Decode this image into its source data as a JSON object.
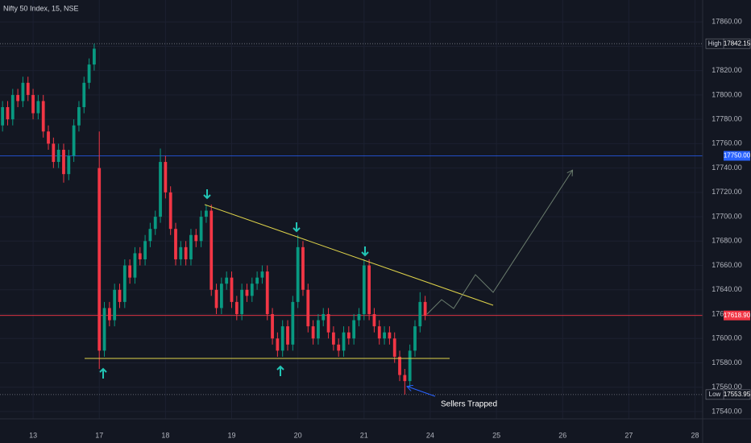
{
  "chart_data": {
    "type": "candlestick",
    "title": "Nifty 50 Index, 15, NSE",
    "xlim": [
      -0.5,
      137.5
    ],
    "xticks": [
      {
        "value": 6,
        "label": "13"
      },
      {
        "value": 19,
        "label": "17"
      },
      {
        "value": 32,
        "label": "18"
      },
      {
        "value": 45,
        "label": "19"
      },
      {
        "value": 58,
        "label": "20"
      },
      {
        "value": 71,
        "label": "21"
      },
      {
        "value": 84,
        "label": "24"
      },
      {
        "value": 97,
        "label": "25"
      },
      {
        "value": 110,
        "label": "26"
      },
      {
        "value": 123,
        "label": "27"
      },
      {
        "value": 136,
        "label": "28"
      }
    ],
    "ylim": [
      17534,
      17878
    ],
    "yticks": [
      {
        "value": 17540,
        "label": "17540.00"
      },
      {
        "value": 17560,
        "label": "17560.00"
      },
      {
        "value": 17580,
        "label": "17580.00"
      },
      {
        "value": 17600,
        "label": "17600.00"
      },
      {
        "value": 17620,
        "label": "17620.00"
      },
      {
        "value": 17640,
        "label": "17640.00"
      },
      {
        "value": 17660,
        "label": "17660.00"
      },
      {
        "value": 17680,
        "label": "17680.00"
      },
      {
        "value": 17700,
        "label": "17700.00"
      },
      {
        "value": 17720,
        "label": "17720.00"
      },
      {
        "value": 17740,
        "label": "17740.00"
      },
      {
        "value": 17760,
        "label": "17760.00"
      },
      {
        "value": 17780,
        "label": "17780.00"
      },
      {
        "value": 17800,
        "label": "17800.00"
      },
      {
        "value": 17820,
        "label": "17820.00"
      },
      {
        "value": 17840,
        "label": "17840.00"
      },
      {
        "value": 17860,
        "label": "17860.00"
      }
    ],
    "grid": true,
    "up_color": "#089981",
    "down_color": "#f23645",
    "open": [
      17775,
      17790,
      17780,
      17800,
      17795,
      17810,
      17800,
      17785,
      17795,
      17770,
      17760,
      17745,
      17755,
      17735,
      17750,
      17775,
      17790,
      17810,
      17825,
      17740,
      17590,
      17625,
      17615,
      17640,
      17630,
      17660,
      17650,
      17670,
      17665,
      17680,
      17690,
      17700,
      17745,
      17720,
      17690,
      17665,
      17675,
      17665,
      17685,
      17680,
      17700,
      17705,
      17640,
      17625,
      17645,
      17650,
      17630,
      17620,
      17640,
      17635,
      17645,
      17650,
      17655,
      17620,
      17600,
      17590,
      17610,
      17595,
      17630,
      17675,
      17640,
      17610,
      17600,
      17615,
      17620,
      17605,
      17595,
      17590,
      17605,
      17600,
      17615,
      17620,
      17660,
      17620,
      17610,
      17600,
      17605,
      17600,
      17585,
      17570,
      17565,
      17590,
      17610,
      17630
    ],
    "high": [
      17795,
      17795,
      17805,
      17805,
      17815,
      17815,
      17805,
      17800,
      17800,
      17775,
      17765,
      17760,
      17760,
      17755,
      17780,
      17795,
      17815,
      17830,
      17842.15,
      17770,
      17630,
      17630,
      17645,
      17645,
      17665,
      17665,
      17675,
      17675,
      17685,
      17695,
      17705,
      17756,
      17750,
      17725,
      17695,
      17680,
      17680,
      17690,
      17690,
      17705,
      17710,
      17710,
      17645,
      17650,
      17655,
      17655,
      17635,
      17645,
      17645,
      17650,
      17655,
      17660,
      17660,
      17625,
      17605,
      17615,
      17615,
      17635,
      17685,
      17680,
      17645,
      17615,
      17620,
      17625,
      17625,
      17610,
      17600,
      17610,
      17610,
      17620,
      17625,
      17665,
      17665,
      17625,
      17615,
      17610,
      17610,
      17605,
      17590,
      17575,
      17595,
      17615,
      17638,
      17635
    ],
    "low": [
      17770,
      17775,
      17775,
      17790,
      17790,
      17795,
      17780,
      17780,
      17765,
      17755,
      17740,
      17740,
      17728,
      17730,
      17745,
      17770,
      17785,
      17805,
      17820,
      17575,
      17585,
      17610,
      17610,
      17625,
      17625,
      17645,
      17645,
      17660,
      17660,
      17675,
      17685,
      17695,
      17715,
      17685,
      17660,
      17660,
      17660,
      17660,
      17675,
      17675,
      17695,
      17635,
      17620,
      17620,
      17640,
      17625,
      17615,
      17615,
      17630,
      17630,
      17640,
      17645,
      17615,
      17595,
      17585,
      17585,
      17590,
      17590,
      17625,
      17635,
      17605,
      17595,
      17595,
      17610,
      17600,
      17590,
      17585,
      17585,
      17595,
      17595,
      17610,
      17615,
      17615,
      17605,
      17595,
      17595,
      17595,
      17580,
      17565,
      17553.95,
      17560,
      17585,
      17605,
      17615
    ],
    "close": [
      17790,
      17780,
      17800,
      17795,
      17810,
      17800,
      17785,
      17795,
      17770,
      17760,
      17745,
      17755,
      17735,
      17750,
      17775,
      17790,
      17810,
      17825,
      17838,
      17590,
      17625,
      17615,
      17640,
      17630,
      17660,
      17650,
      17670,
      17665,
      17680,
      17690,
      17700,
      17745,
      17720,
      17690,
      17665,
      17675,
      17665,
      17685,
      17680,
      17700,
      17705,
      17640,
      17625,
      17645,
      17650,
      17630,
      17620,
      17640,
      17635,
      17645,
      17650,
      17655,
      17620,
      17600,
      17590,
      17610,
      17595,
      17630,
      17675,
      17640,
      17610,
      17600,
      17615,
      17620,
      17605,
      17595,
      17590,
      17605,
      17600,
      17615,
      17620,
      17660,
      17620,
      17610,
      17600,
      17605,
      17600,
      17585,
      17570,
      17565,
      17590,
      17610,
      17630,
      17618.9
    ],
    "price_lines": [
      {
        "label": "High",
        "value": 17842.15,
        "color": "#787b86"
      },
      {
        "value": 17750,
        "value_label": "17750.00",
        "color": "#2962ff"
      },
      {
        "value": 17618.9,
        "value_label": "17618.90",
        "color": "#f23645"
      },
      {
        "label": "Low",
        "value": 17553.95,
        "color": "#787b86"
      }
    ],
    "annotation": "Sellers Trapped"
  }
}
